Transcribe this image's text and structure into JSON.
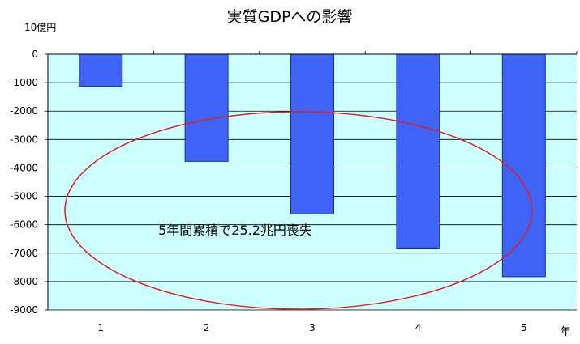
{
  "chart_data": {
    "type": "bar",
    "title": "実質GDPへの影響",
    "y_unit_label": "10億円",
    "x_unit_label": "年",
    "categories": [
      "1",
      "2",
      "3",
      "4",
      "5"
    ],
    "values": [
      -1130,
      -3770,
      -5620,
      -6850,
      -7830
    ],
    "ylim": [
      -9000,
      0
    ],
    "yticks": [
      0,
      -1000,
      -2000,
      -3000,
      -4000,
      -5000,
      -6000,
      -7000,
      -8000,
      -9000
    ],
    "grid": true,
    "annotation": "5年間累積で25.2兆円喪失",
    "colors": {
      "bar_fill": "#3f63f5",
      "bar_stroke": "#1e2f86",
      "plot_background": "#ccffff",
      "ellipse": "#e02020"
    }
  }
}
